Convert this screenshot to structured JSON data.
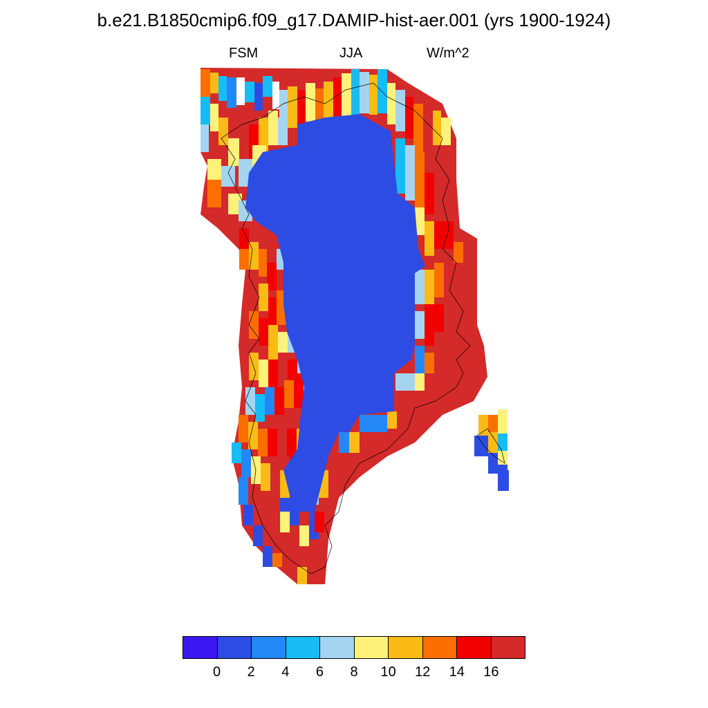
{
  "title": "b.e21.B1850cmip6.f09_g17.DAMIP-hist-aer.001 (yrs 1900-1924)",
  "subtitles": {
    "left": "FSM",
    "center": "JJA",
    "right": "W/m^2"
  },
  "colorbar": {
    "colors": [
      "#3b17f2",
      "#2d4ce3",
      "#2388f5",
      "#17bcf5",
      "#a5d4f0",
      "#fff27a",
      "#fbbb17",
      "#fb6f00",
      "#f20000",
      "#d42a2a"
    ],
    "labels": [
      "0",
      "2",
      "4",
      "6",
      "8",
      "10",
      "12",
      "14",
      "16"
    ]
  },
  "map_data": {
    "field": "FSM",
    "season": "JJA",
    "units": "W/m^2",
    "interior_level": "0-2",
    "margin_level": ">16",
    "region": "Greenland"
  }
}
